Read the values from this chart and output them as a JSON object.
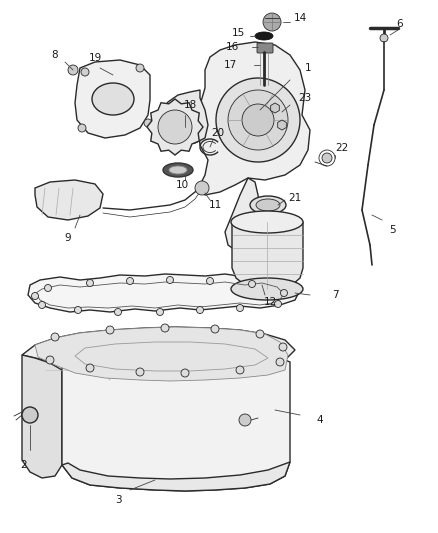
{
  "bg_color": "#ffffff",
  "line_color": "#2a2a2a",
  "label_color": "#1a1a1a",
  "figsize": [
    4.38,
    5.33
  ],
  "dpi": 100,
  "lw_main": 1.0,
  "lw_thin": 0.6,
  "lw_thick": 1.4,
  "font_size": 7.5
}
